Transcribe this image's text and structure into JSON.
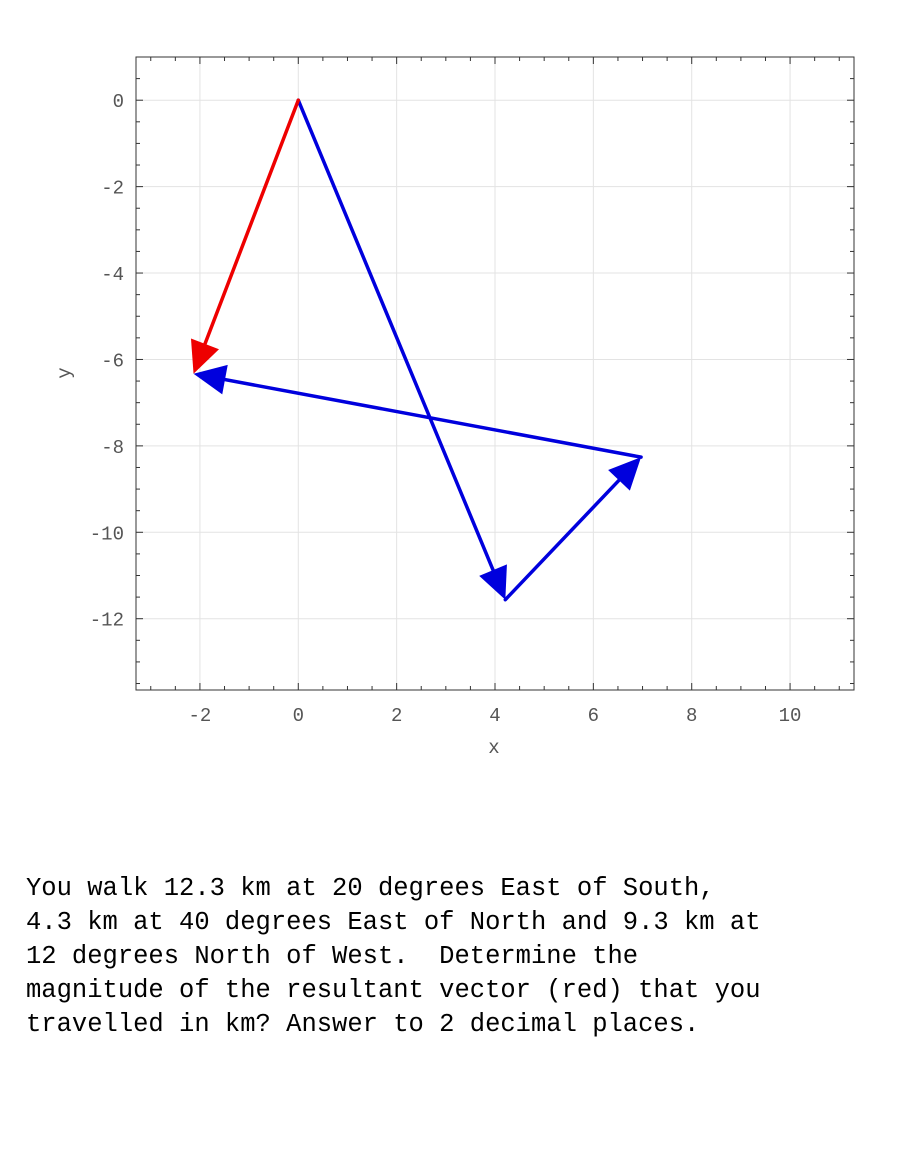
{
  "chart_data": {
    "type": "vector",
    "xlabel": "x",
    "ylabel": "y",
    "xlim": [
      -3.3,
      11.3
    ],
    "ylim": [
      -13.65,
      1.0
    ],
    "xticks": [
      -2,
      0,
      2,
      4,
      6,
      8,
      10
    ],
    "yticks": [
      0,
      -2,
      -4,
      -6,
      -8,
      -10,
      -12
    ],
    "xtick_labels": [
      "-2",
      "0",
      "2",
      "4",
      "6",
      "8",
      "10"
    ],
    "ytick_labels": [
      "0",
      "-2",
      "-4",
      "-6",
      "-8",
      "-10",
      "-12"
    ],
    "grid": true,
    "vectors": [
      {
        "from": [
          0,
          0
        ],
        "to": [
          4.21,
          -11.56
        ],
        "color": "#0000dd"
      },
      {
        "from": [
          4.21,
          -11.56
        ],
        "to": [
          6.97,
          -8.26
        ],
        "color": "#0000dd"
      },
      {
        "from": [
          6.97,
          -8.26
        ],
        "to": [
          -2.13,
          -6.33
        ],
        "color": "#0000dd"
      },
      {
        "from": [
          0,
          0
        ],
        "to": [
          -2.13,
          -6.33
        ],
        "color": "#ee0000"
      }
    ]
  },
  "question": {
    "lines": [
      "You walk 12.3 km at 20 degrees East of South,",
      "4.3 km at 40 degrees East of North and 9.3 km at",
      "12 degrees North of West.  Determine the",
      "magnitude of the resultant vector (red) that you",
      "travelled in km? Answer to 2 decimal places."
    ]
  }
}
